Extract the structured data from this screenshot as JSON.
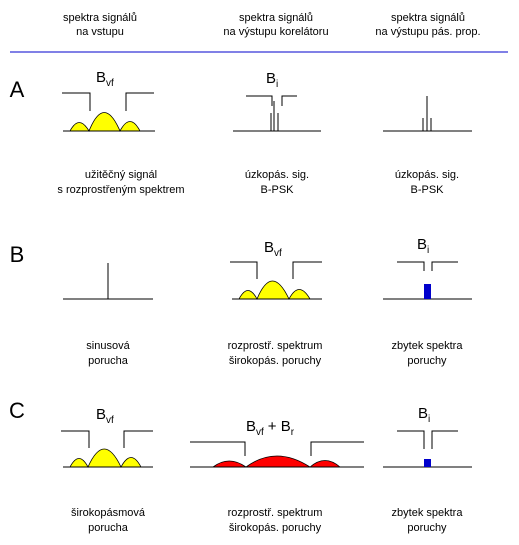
{
  "headers": [
    [
      "spektra signálů",
      "na vstupu"
    ],
    [
      "spektra signálů",
      "na výstupu korelátoru"
    ],
    [
      "spektra signálů",
      "na výstupu pás. prop."
    ]
  ],
  "rows": [
    {
      "label": "A",
      "cells": [
        {
          "band": "B",
          "band_sub": "vf",
          "caption": [
            "užitěčný signál",
            "s rozprostřeným spektrem"
          ]
        },
        {
          "band": "B",
          "band_sub": "i",
          "caption": [
            "úzkopás. sig.",
            "B-PSK"
          ]
        },
        {
          "caption": [
            "úzkopás. sig.",
            "B-PSK"
          ]
        }
      ]
    },
    {
      "label": "B",
      "cells": [
        {
          "caption": [
            "sinusová",
            "porucha"
          ]
        },
        {
          "band": "B",
          "band_sub": "vf",
          "caption": [
            "rozprostř. spektrum",
            "širokopás. poruchy"
          ]
        },
        {
          "band": "B",
          "band_sub": "i",
          "caption": [
            "zbytek spektra",
            "poruchy"
          ]
        }
      ]
    },
    {
      "label": "C",
      "cells": [
        {
          "band": "B",
          "band_sub": "vf",
          "caption": [
            "širokopásmová",
            "porucha"
          ]
        },
        {
          "band": "B",
          "band_sub": "vf",
          "band_tail": "+ B",
          "band_tail_sub": "r",
          "caption": [
            "rozprostř. spektrum",
            "širokopás. poruchy"
          ]
        },
        {
          "band": "B",
          "band_sub": "i",
          "caption": [
            "zbytek spektra",
            "poruchy"
          ]
        }
      ]
    }
  ],
  "colors": {
    "separator": "#0000cc",
    "spread_fill": "#ffff00",
    "wideband_fill": "#ff0000",
    "residual_fill": "#0000cc"
  }
}
